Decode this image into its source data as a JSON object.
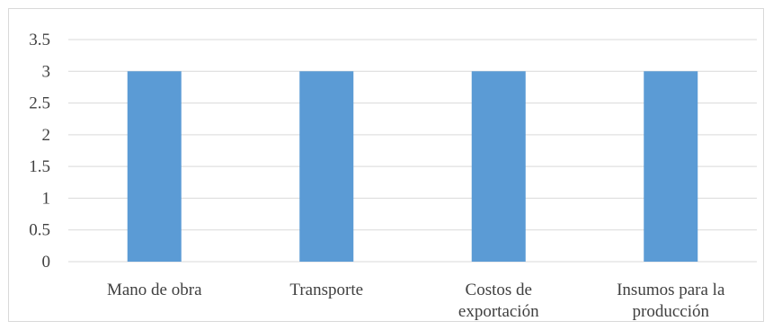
{
  "chart_data": {
    "type": "bar",
    "categories": [
      [
        "Mano de obra"
      ],
      [
        "Transporte"
      ],
      [
        "Costos de",
        "exportación"
      ],
      [
        "Insumos para la",
        "producción"
      ]
    ],
    "values": [
      3,
      3,
      3,
      3
    ],
    "y_ticks": [
      "0",
      "0.5",
      "1",
      "1.5",
      "2",
      "2.5",
      "3",
      "3.5"
    ],
    "ylim": [
      0,
      3.5
    ],
    "grid": true,
    "legend": "none",
    "title": "",
    "xlabel": "",
    "ylabel": "",
    "colors": {
      "bar": "#5b9bd5",
      "grid": "#d9d9d9",
      "text": "#404040"
    }
  }
}
